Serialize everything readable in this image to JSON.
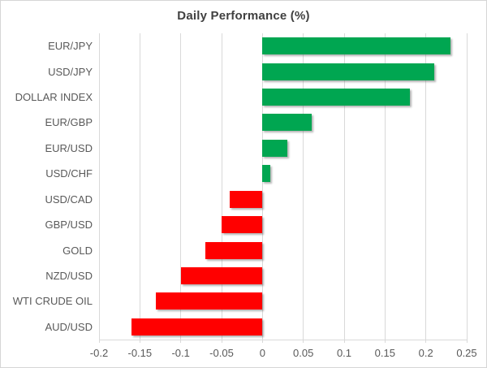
{
  "chart_data": {
    "type": "bar",
    "orientation": "horizontal",
    "title": "Daily Performance (%)",
    "xlabel": "",
    "ylabel": "",
    "xlim": [
      -0.2,
      0.25
    ],
    "grid": "vertical",
    "legend": "none",
    "categories": [
      "EUR/JPY",
      "USD/JPY",
      "DOLLAR INDEX",
      "EUR/GBP",
      "EUR/USD",
      "USD/CHF",
      "USD/CAD",
      "GBP/USD",
      "GOLD",
      "NZD/USD",
      "WTI CRUDE OIL",
      "AUD/USD"
    ],
    "values": [
      0.23,
      0.21,
      0.18,
      0.06,
      0.03,
      0.01,
      -0.04,
      -0.05,
      -0.07,
      -0.1,
      -0.13,
      -0.16
    ],
    "x_ticks": [
      {
        "label": "-0.2",
        "value": -0.2
      },
      {
        "label": "-0.15",
        "value": -0.15
      },
      {
        "label": "-0.1",
        "value": -0.1
      },
      {
        "label": "-0.05",
        "value": -0.05
      },
      {
        "label": "0",
        "value": 0
      },
      {
        "label": "0.05",
        "value": 0.05
      },
      {
        "label": "0.1",
        "value": 0.1
      },
      {
        "label": "0.15",
        "value": 0.15
      },
      {
        "label": "0.2",
        "value": 0.2
      },
      {
        "label": "0.25",
        "value": 0.25
      }
    ],
    "colors": {
      "positive": "#00a651",
      "negative": "#ff0000",
      "gridline": "#d9d9d9",
      "axis_label": "#595959",
      "title": "#404040",
      "background": "#ffffff",
      "border": "#d6d6d6"
    }
  }
}
